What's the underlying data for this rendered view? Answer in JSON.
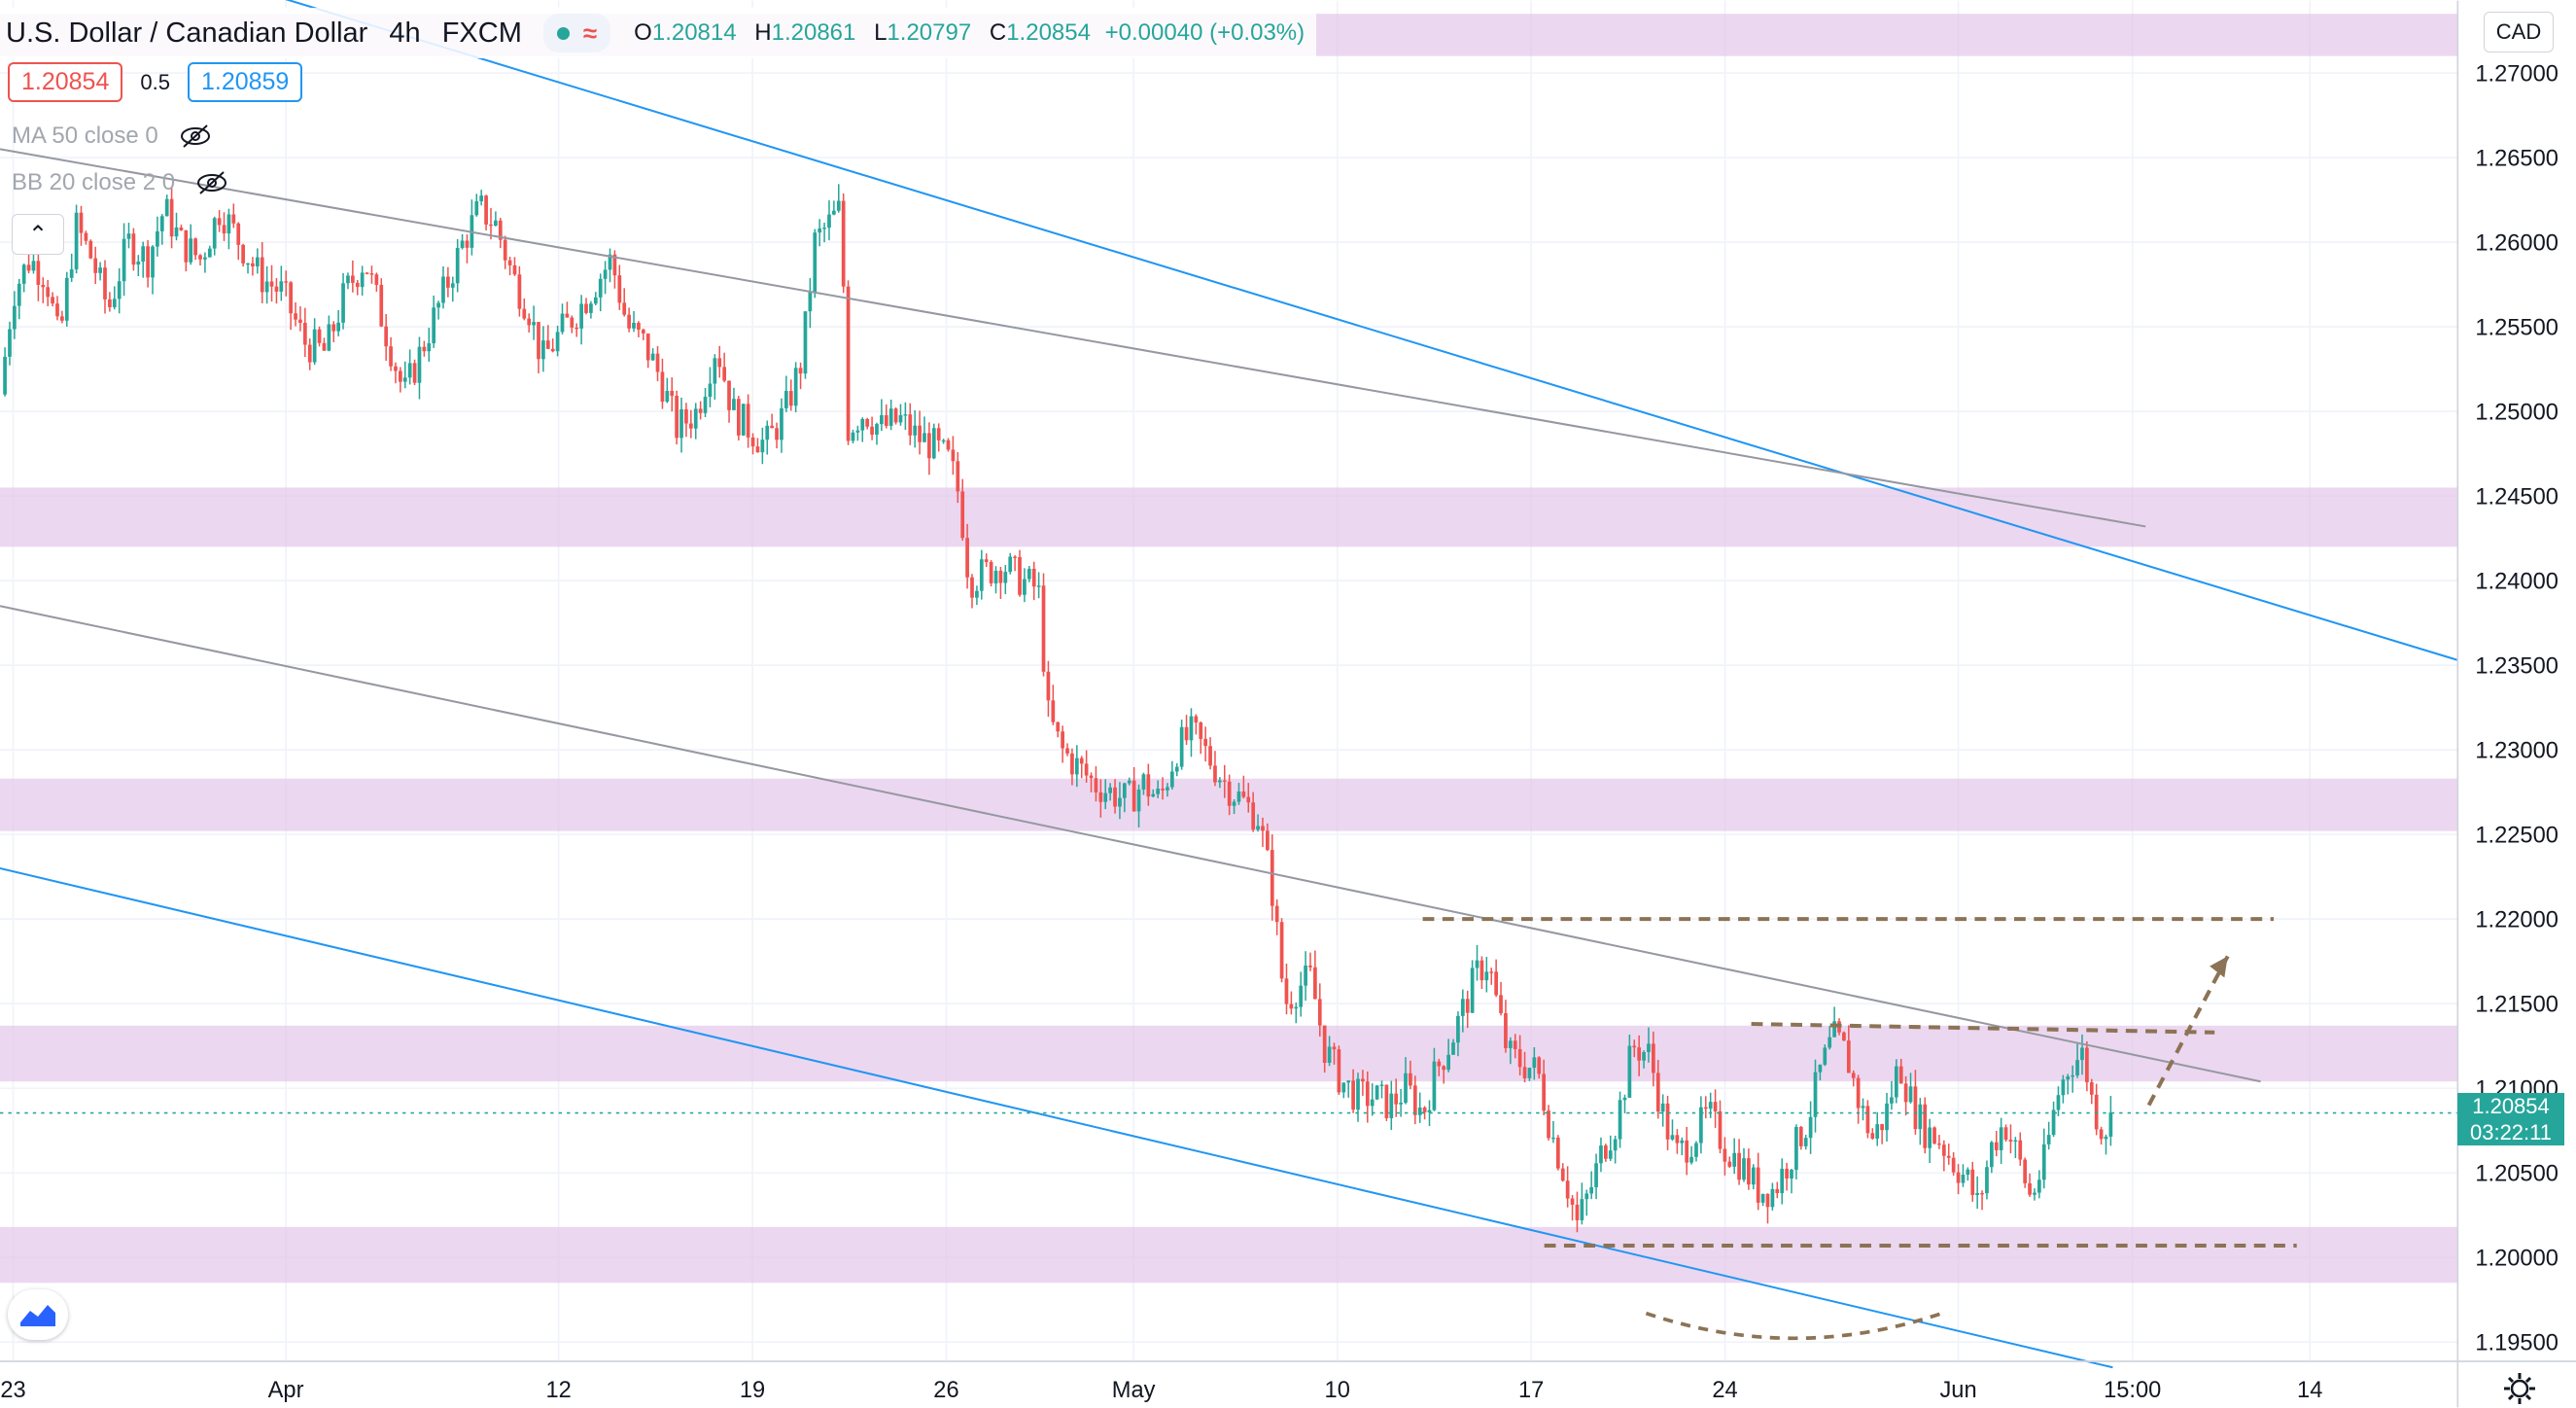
{
  "header": {
    "symbol_title": "U.S. Dollar / Canadian Dollar",
    "interval": "4h",
    "exchange": "FXCM",
    "ohlc": {
      "open_label": "O",
      "open": "1.20814",
      "high_label": "H",
      "high": "1.20861",
      "low_label": "L",
      "low": "1.20797",
      "close_label": "C",
      "close": "1.20854",
      "change": "+0.00040 (+0.03%)"
    }
  },
  "trade_panel": {
    "sell_price": "1.20854",
    "spread": "0.5",
    "buy_price": "1.20859"
  },
  "indicators": [
    {
      "label": "MA 50 close 0",
      "icon": "eye-hidden-icon"
    },
    {
      "label": "BB 20 close 2 0",
      "icon": "eye-hidden-icon"
    }
  ],
  "collapse_icon": "chevron-up-icon",
  "currency": "CAD",
  "last_price": {
    "price": "1.20854",
    "countdown": "03:22:11"
  },
  "colors": {
    "up": "#26a69a",
    "down": "#ef5350",
    "zone": "#e1bee7",
    "channel_blue": "#2196f3",
    "channel_gray": "#9598a1",
    "annotation": "#8b7355"
  },
  "chart_data": {
    "type": "candlestick",
    "title": "U.S. Dollar / Canadian Dollar",
    "ylim": [
      1.1925,
      1.2735
    ],
    "y_ticks": [
      "1.27000",
      "1.26500",
      "1.26000",
      "1.25500",
      "1.25000",
      "1.24500",
      "1.24000",
      "1.23500",
      "1.23000",
      "1.22500",
      "1.22000",
      "1.21500",
      "1.21000",
      "1.20500",
      "1.20000",
      "1.19500"
    ],
    "x_ticks": [
      "23",
      "Apr",
      "12",
      "19",
      "26",
      "May",
      "10",
      "17",
      "24",
      "Jun",
      "15:00",
      "14"
    ],
    "grid": true,
    "close_path": [
      [
        0,
        1.251
      ],
      [
        8,
        1.257
      ],
      [
        18,
        1.259
      ],
      [
        28,
        1.258
      ],
      [
        36,
        1.254
      ],
      [
        46,
        1.261
      ],
      [
        56,
        1.259
      ],
      [
        66,
        1.256
      ],
      [
        78,
        1.26
      ],
      [
        90,
        1.259
      ],
      [
        100,
        1.262
      ],
      [
        110,
        1.26
      ],
      [
        122,
        1.259
      ],
      [
        134,
        1.262
      ],
      [
        146,
        1.26
      ],
      [
        158,
        1.258
      ],
      [
        172,
        1.257
      ],
      [
        186,
        1.254
      ],
      [
        198,
        1.2535
      ],
      [
        210,
        1.257
      ],
      [
        222,
        1.259
      ],
      [
        234,
        1.255
      ],
      [
        246,
        1.251
      ],
      [
        258,
        1.254
      ],
      [
        270,
        1.257
      ],
      [
        282,
        1.26
      ],
      [
        292,
        1.262
      ],
      [
        302,
        1.261
      ],
      [
        312,
        1.258
      ],
      [
        322,
        1.256
      ],
      [
        330,
        1.253
      ],
      [
        340,
        1.2545
      ],
      [
        352,
        1.256
      ],
      [
        362,
        1.2575
      ],
      [
        372,
        1.259
      ],
      [
        382,
        1.255
      ],
      [
        392,
        1.254
      ],
      [
        402,
        1.252
      ],
      [
        412,
        1.249
      ],
      [
        424,
        1.25
      ],
      [
        436,
        1.254
      ],
      [
        446,
        1.25
      ],
      [
        456,
        1.249
      ],
      [
        466,
        1.248
      ],
      [
        478,
        1.25
      ],
      [
        488,
        1.253
      ],
      [
        496,
        1.26
      ],
      [
        504,
        1.261
      ],
      [
        512,
        1.262
      ],
      [
        516,
        1.249
      ],
      [
        526,
        1.25
      ],
      [
        536,
        1.249
      ],
      [
        548,
        1.2495
      ],
      [
        558,
        1.2485
      ],
      [
        568,
        1.248
      ],
      [
        578,
        1.247
      ],
      [
        584,
        1.245
      ],
      [
        590,
        1.24
      ],
      [
        600,
        1.2405
      ],
      [
        610,
        1.241
      ],
      [
        622,
        1.24
      ],
      [
        632,
        1.2395
      ],
      [
        638,
        1.232
      ],
      [
        646,
        1.23
      ],
      [
        656,
        1.229
      ],
      [
        666,
        1.228
      ],
      [
        676,
        1.2275
      ],
      [
        686,
        1.227
      ],
      [
        696,
        1.228
      ],
      [
        706,
        1.227
      ],
      [
        716,
        1.23
      ],
      [
        726,
        1.231
      ],
      [
        736,
        1.2295
      ],
      [
        746,
        1.228
      ],
      [
        756,
        1.227
      ],
      [
        766,
        1.226
      ],
      [
        774,
        1.222
      ],
      [
        782,
        1.215
      ],
      [
        790,
        1.216
      ],
      [
        798,
        1.2165
      ],
      [
        806,
        1.2125
      ],
      [
        816,
        1.2105
      ],
      [
        826,
        1.2095
      ],
      [
        836,
        1.2095
      ],
      [
        846,
        1.209
      ],
      [
        856,
        1.21
      ],
      [
        866,
        1.2085
      ],
      [
        874,
        1.211
      ],
      [
        884,
        1.213
      ],
      [
        892,
        1.215
      ],
      [
        900,
        1.217
      ],
      [
        906,
        1.2175
      ],
      [
        912,
        1.2145
      ],
      [
        918,
        1.212
      ],
      [
        926,
        1.2115
      ],
      [
        936,
        1.211
      ],
      [
        944,
        1.2075
      ],
      [
        952,
        1.205
      ],
      [
        960,
        1.202
      ],
      [
        968,
        1.204
      ],
      [
        976,
        1.2065
      ],
      [
        984,
        1.208
      ],
      [
        994,
        1.2125
      ],
      [
        1004,
        1.212
      ],
      [
        1012,
        1.2085
      ],
      [
        1020,
        1.206
      ],
      [
        1030,
        1.207
      ],
      [
        1040,
        1.2085
      ],
      [
        1050,
        1.2065
      ],
      [
        1060,
        1.2055
      ],
      [
        1070,
        1.204
      ],
      [
        1080,
        1.204
      ],
      [
        1090,
        1.206
      ],
      [
        1100,
        1.208
      ],
      [
        1108,
        1.211
      ],
      [
        1116,
        1.213
      ],
      [
        1124,
        1.212
      ],
      [
        1132,
        1.209
      ],
      [
        1140,
        1.207
      ],
      [
        1148,
        1.2085
      ],
      [
        1156,
        1.2115
      ],
      [
        1164,
        1.209
      ],
      [
        1172,
        1.2075
      ],
      [
        1180,
        1.207
      ],
      [
        1190,
        1.2055
      ],
      [
        1198,
        1.2045
      ],
      [
        1204,
        1.203
      ],
      [
        1212,
        1.2065
      ],
      [
        1220,
        1.208
      ],
      [
        1228,
        1.206
      ],
      [
        1236,
        1.2035
      ],
      [
        1244,
        1.2055
      ],
      [
        1252,
        1.2095
      ],
      [
        1260,
        1.2115
      ],
      [
        1268,
        1.212
      ],
      [
        1274,
        1.209
      ],
      [
        1280,
        1.2075
      ],
      [
        1288,
        1.2085
      ]
    ],
    "zones": [
      {
        "from": 1.271,
        "to": 1.2735
      },
      {
        "from": 1.242,
        "to": 1.2455
      },
      {
        "from": 1.2252,
        "to": 1.2283
      },
      {
        "from": 1.2104,
        "to": 1.2137
      },
      {
        "from": 1.1985,
        "to": 1.2018
      }
    ],
    "trendlines": [
      {
        "color": "blue",
        "from": [
          0,
          1.2795
        ],
        "to": [
          1496,
          1.2353
        ]
      },
      {
        "color": "blue",
        "from": [
          0,
          1.223
        ],
        "to": [
          1286,
          1.1935
        ]
      },
      {
        "color": "gray",
        "from": [
          0,
          1.2655
        ],
        "to": [
          1306,
          1.2432
        ]
      },
      {
        "color": "gray",
        "from": [
          0,
          1.2385
        ],
        "to": [
          1376,
          1.2104
        ]
      }
    ],
    "annotations": {
      "resistance_high": {
        "from": [
          866,
          1.22
        ],
        "to": [
          1384,
          1.22
        ]
      },
      "resistance_mid": {
        "from": [
          1066,
          1.2138
        ],
        "to": [
          1348,
          1.2133
        ]
      },
      "support": {
        "from": [
          940,
          1.2007
        ],
        "to": [
          1398,
          1.2007
        ]
      },
      "projection_arrow": {
        "from": [
          1308,
          1.209
        ],
        "to": [
          1356,
          1.2178
        ]
      },
      "rounded_bottom": {
        "from": [
          1002,
          1.1967
        ],
        "mid": [
          1092,
          1.1953
        ],
        "to": [
          1182,
          1.1967
        ]
      }
    },
    "last_price": 1.20854
  }
}
